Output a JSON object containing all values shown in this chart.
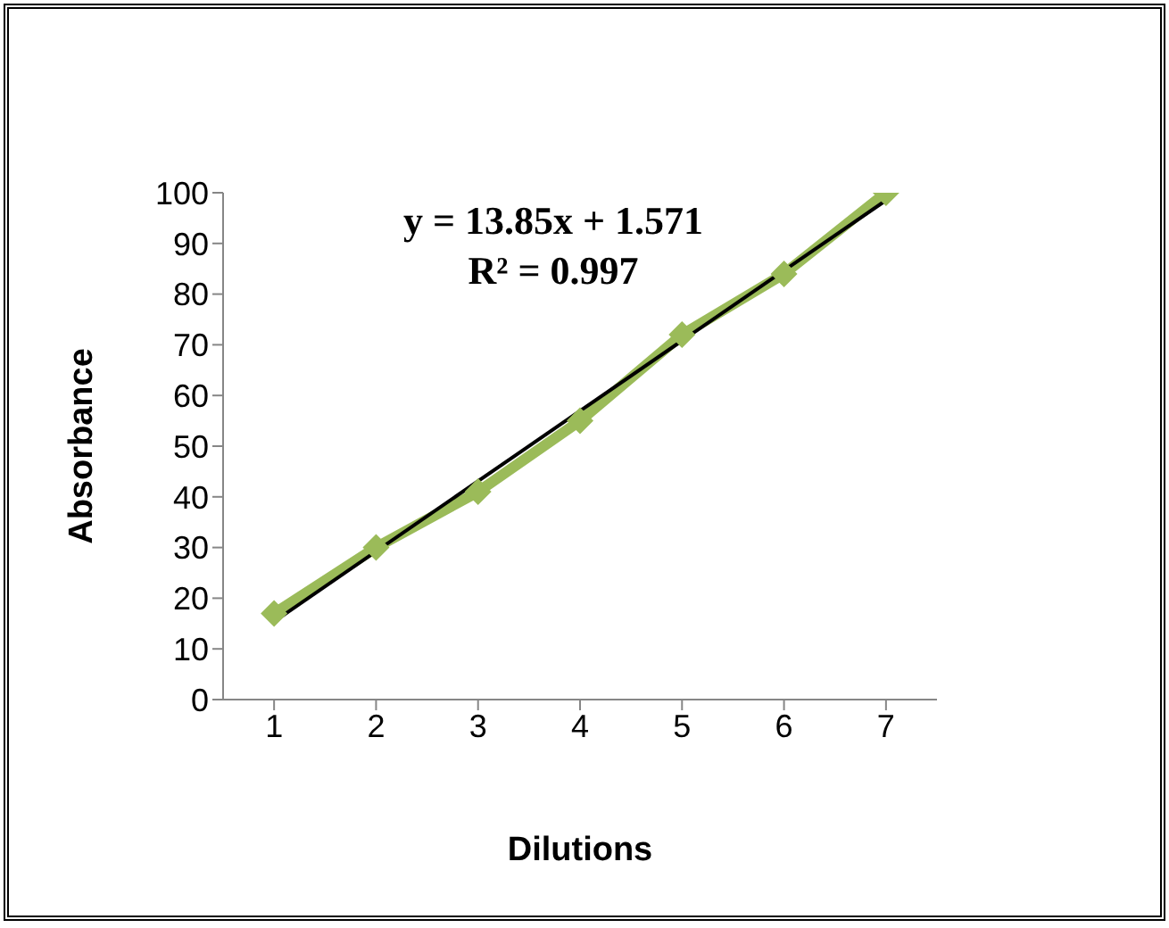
{
  "chart_data": {
    "type": "line",
    "xlabel": "Dilutions",
    "ylabel": "Absorbance",
    "annotations": [
      "y = 13.85x + 1.571",
      "R² = 0.997"
    ],
    "x": [
      1,
      2,
      3,
      4,
      5,
      6,
      7
    ],
    "xlim": [
      0.5,
      7.5
    ],
    "xticks": [
      1,
      2,
      3,
      4,
      5,
      6,
      7
    ],
    "ylim": [
      0,
      100
    ],
    "yticks": [
      0,
      10,
      20,
      30,
      40,
      50,
      60,
      70,
      80,
      90,
      100
    ],
    "grid": false,
    "legend": false,
    "series": [
      {
        "type": "line",
        "color": "#9bbb59",
        "values": [
          17,
          30,
          41,
          55,
          72,
          84,
          100
        ],
        "marker": "diamond",
        "line_style": "solid"
      },
      {
        "type": "line",
        "color": "#000000",
        "x": [
          1,
          7
        ],
        "values": [
          15.4,
          98.5
        ],
        "marker": "none",
        "line_style": "solid"
      }
    ]
  }
}
